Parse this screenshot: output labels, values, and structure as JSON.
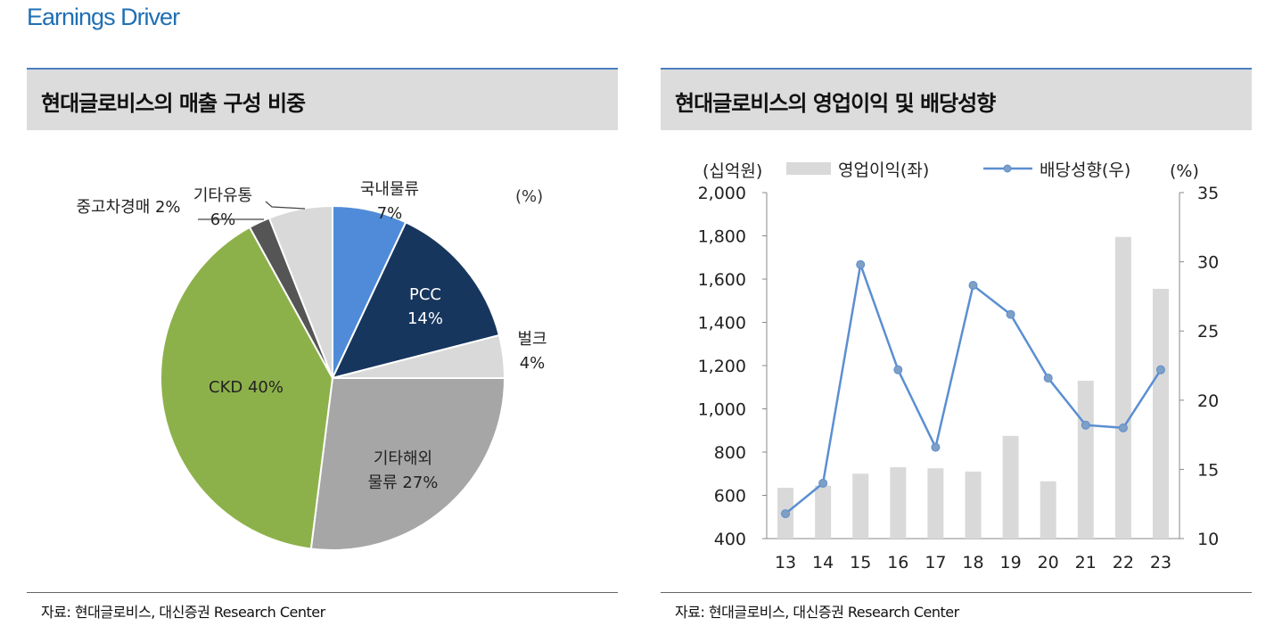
{
  "page": {
    "title": "Earnings Driver"
  },
  "left_panel": {
    "title": "현대글로비스의 매출 구성 비중",
    "source": "자료: 현대글로비스, 대신증권 Research Center",
    "unit_label": "(%)"
  },
  "right_panel": {
    "title": "현대글로비스의 영업이익 및 배당성향",
    "source": "자료: 현대글로비스, 대신증권 Research Center"
  },
  "chart_data": [
    {
      "type": "pie",
      "unit": "(%)",
      "slices": [
        {
          "name": "국내물류",
          "value": 7,
          "color": "#4f8bd8"
        },
        {
          "name": "PCC",
          "value": 14,
          "color": "#17365e"
        },
        {
          "name": "벌크",
          "value": 4,
          "color": "#d9d9d9"
        },
        {
          "name": "기타해외 물류",
          "value": 27,
          "color": "#a6a6a6"
        },
        {
          "name": "CKD",
          "value": 40,
          "color": "#8db14a"
        },
        {
          "name": "중고차경매",
          "value": 2,
          "color": "#555555"
        },
        {
          "name": "기타유통",
          "value": 6,
          "color": "#d9d9d9"
        }
      ],
      "labels": [
        {
          "lines": [
            "국내물류",
            "7%"
          ]
        },
        {
          "lines": [
            "PCC",
            "14%"
          ]
        },
        {
          "lines": [
            "벌크",
            "4%"
          ]
        },
        {
          "lines": [
            "기타해외",
            "물류 27%"
          ]
        },
        {
          "lines": [
            "CKD 40%"
          ]
        },
        {
          "lines": [
            "중고차경매 2%"
          ]
        },
        {
          "lines": [
            "기타유통",
            "6%"
          ]
        }
      ]
    },
    {
      "type": "bar+line",
      "categories": [
        "13",
        "14",
        "15",
        "16",
        "17",
        "18",
        "19",
        "20",
        "21",
        "22",
        "23"
      ],
      "series": [
        {
          "name": "영업이익(좌)",
          "type": "bar",
          "axis": "left",
          "values": [
            635,
            645,
            700,
            730,
            725,
            710,
            875,
            665,
            1130,
            1795,
            1555
          ],
          "color": "#d9d9d9"
        },
        {
          "name": "배당성향(우)",
          "type": "line",
          "axis": "right",
          "values": [
            11.8,
            14.0,
            29.8,
            22.2,
            16.6,
            28.3,
            26.2,
            21.6,
            18.2,
            18.0,
            22.2
          ],
          "color": "#5b8fd1"
        }
      ],
      "left_axis": {
        "label": "(십억원)",
        "ylim": [
          400,
          2000
        ],
        "ticks": [
          "400",
          "600",
          "800",
          "1,000",
          "1,200",
          "1,400",
          "1,600",
          "1,800",
          "2,000"
        ]
      },
      "right_axis": {
        "label": "(%)",
        "ylim": [
          10,
          35
        ],
        "ticks": [
          "10",
          "15",
          "20",
          "25",
          "30",
          "35"
        ]
      },
      "legend": "top"
    }
  ]
}
